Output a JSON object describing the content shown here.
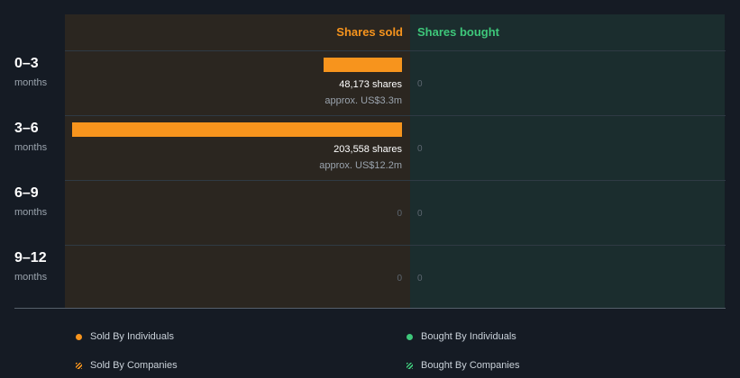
{
  "chart_data": {
    "type": "bar",
    "orientation": "horizontal",
    "columns": [
      "Shares sold",
      "Shares bought"
    ],
    "rows": [
      {
        "period": "0–3",
        "unit": "months",
        "sold": 48173,
        "sold_label": "48,173 shares",
        "sold_value": "approx. US$3.3m",
        "bought": 0,
        "bought_label": "0"
      },
      {
        "period": "3–6",
        "unit": "months",
        "sold": 203558,
        "sold_label": "203,558 shares",
        "sold_value": "approx. US$12.2m",
        "bought": 0,
        "bought_label": "0"
      },
      {
        "period": "6–9",
        "unit": "months",
        "sold": 0,
        "sold_label": "0",
        "sold_value": "",
        "bought": 0,
        "bought_label": "0"
      },
      {
        "period": "9–12",
        "unit": "months",
        "sold": 0,
        "sold_label": "0",
        "sold_value": "",
        "bought": 0,
        "bought_label": "0"
      }
    ],
    "legend": [
      {
        "label": "Sold By Individuals",
        "color": "#f7941d",
        "style": "dot"
      },
      {
        "label": "Bought By Individuals",
        "color": "#3ec77a",
        "style": "dot"
      },
      {
        "label": "Sold By Companies",
        "color": "#f7941d",
        "style": "hatch"
      },
      {
        "label": "Bought By Companies",
        "color": "#3ec77a",
        "style": "hatch"
      }
    ],
    "legend_placement": "bottom",
    "colors": {
      "sold": "#f7941d",
      "bought": "#3ec77a"
    }
  }
}
